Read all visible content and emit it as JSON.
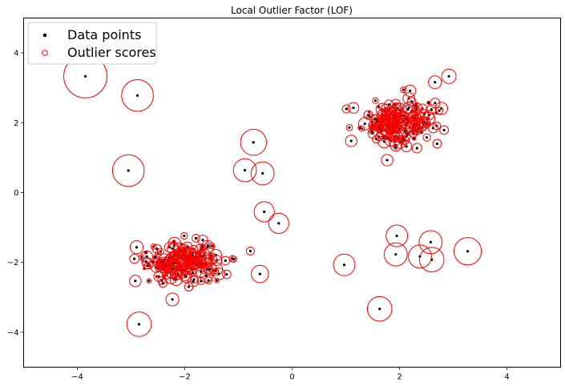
{
  "chart_data": {
    "type": "scatter",
    "title": "Local Outlier Factor (LOF)",
    "xlabel": "",
    "ylabel": "",
    "xlim": [
      -5,
      5
    ],
    "ylim": [
      -5,
      5
    ],
    "xticks": [
      -4,
      -2,
      0,
      2,
      4
    ],
    "yticks": [
      -4,
      -2,
      0,
      2,
      4
    ],
    "xtick_labels": [
      "−4",
      "−2",
      "0",
      "2",
      "4"
    ],
    "ytick_labels": [
      "−4",
      "−2",
      "0",
      "2",
      "4"
    ],
    "grid": false,
    "legend_position": "upper-left",
    "legend": [
      {
        "label": "Data points",
        "marker": "filled-dot",
        "color": "#000000"
      },
      {
        "label": "Outlier scores",
        "marker": "hollow-circle",
        "color": "#ff0000"
      }
    ],
    "colors": {
      "points": "#000000",
      "scores": "#ff0000"
    },
    "clusters": [
      {
        "center": [
          -2.0,
          -2.0
        ],
        "spread": [
          0.35,
          0.3
        ],
        "count": 200,
        "score_range": [
          0.01,
          0.09
        ]
      },
      {
        "center": [
          2.0,
          2.0
        ],
        "spread": [
          0.35,
          0.3
        ],
        "count": 200,
        "score_range": [
          0.01,
          0.09
        ]
      }
    ],
    "outliers": [
      {
        "x": -3.85,
        "y": 3.33,
        "score": 0.3
      },
      {
        "x": -2.88,
        "y": 2.78,
        "score": 0.22
      },
      {
        "x": -3.05,
        "y": 0.63,
        "score": 0.22
      },
      {
        "x": -0.72,
        "y": 1.44,
        "score": 0.18
      },
      {
        "x": -0.88,
        "y": 0.64,
        "score": 0.16
      },
      {
        "x": -0.55,
        "y": 0.55,
        "score": 0.16
      },
      {
        "x": -0.52,
        "y": -0.55,
        "score": 0.14
      },
      {
        "x": -0.25,
        "y": -0.88,
        "score": 0.14
      },
      {
        "x": -0.6,
        "y": -2.33,
        "score": 0.12
      },
      {
        "x": -2.85,
        "y": -3.77,
        "score": 0.17
      },
      {
        "x": -2.23,
        "y": -3.06,
        "score": 0.09
      },
      {
        "x": -2.92,
        "y": -2.53,
        "score": 0.08
      },
      {
        "x": 0.97,
        "y": -2.07,
        "score": 0.15
      },
      {
        "x": 1.63,
        "y": -3.33,
        "score": 0.17
      },
      {
        "x": 1.93,
        "y": -1.77,
        "score": 0.16
      },
      {
        "x": 1.95,
        "y": -1.24,
        "score": 0.15
      },
      {
        "x": 2.38,
        "y": -1.83,
        "score": 0.16
      },
      {
        "x": 2.58,
        "y": -1.42,
        "score": 0.16
      },
      {
        "x": 2.6,
        "y": -1.92,
        "score": 0.17
      },
      {
        "x": 3.27,
        "y": -1.68,
        "score": 0.19
      },
      {
        "x": 2.92,
        "y": 3.33,
        "score": 0.1
      },
      {
        "x": 2.66,
        "y": 3.16,
        "score": 0.09
      },
      {
        "x": 1.77,
        "y": 0.93,
        "score": 0.08
      },
      {
        "x": 1.1,
        "y": 1.48,
        "score": 0.08
      },
      {
        "x": 2.83,
        "y": 1.79,
        "score": 0.06
      },
      {
        "x": 2.7,
        "y": 1.4,
        "score": 0.06
      }
    ]
  }
}
